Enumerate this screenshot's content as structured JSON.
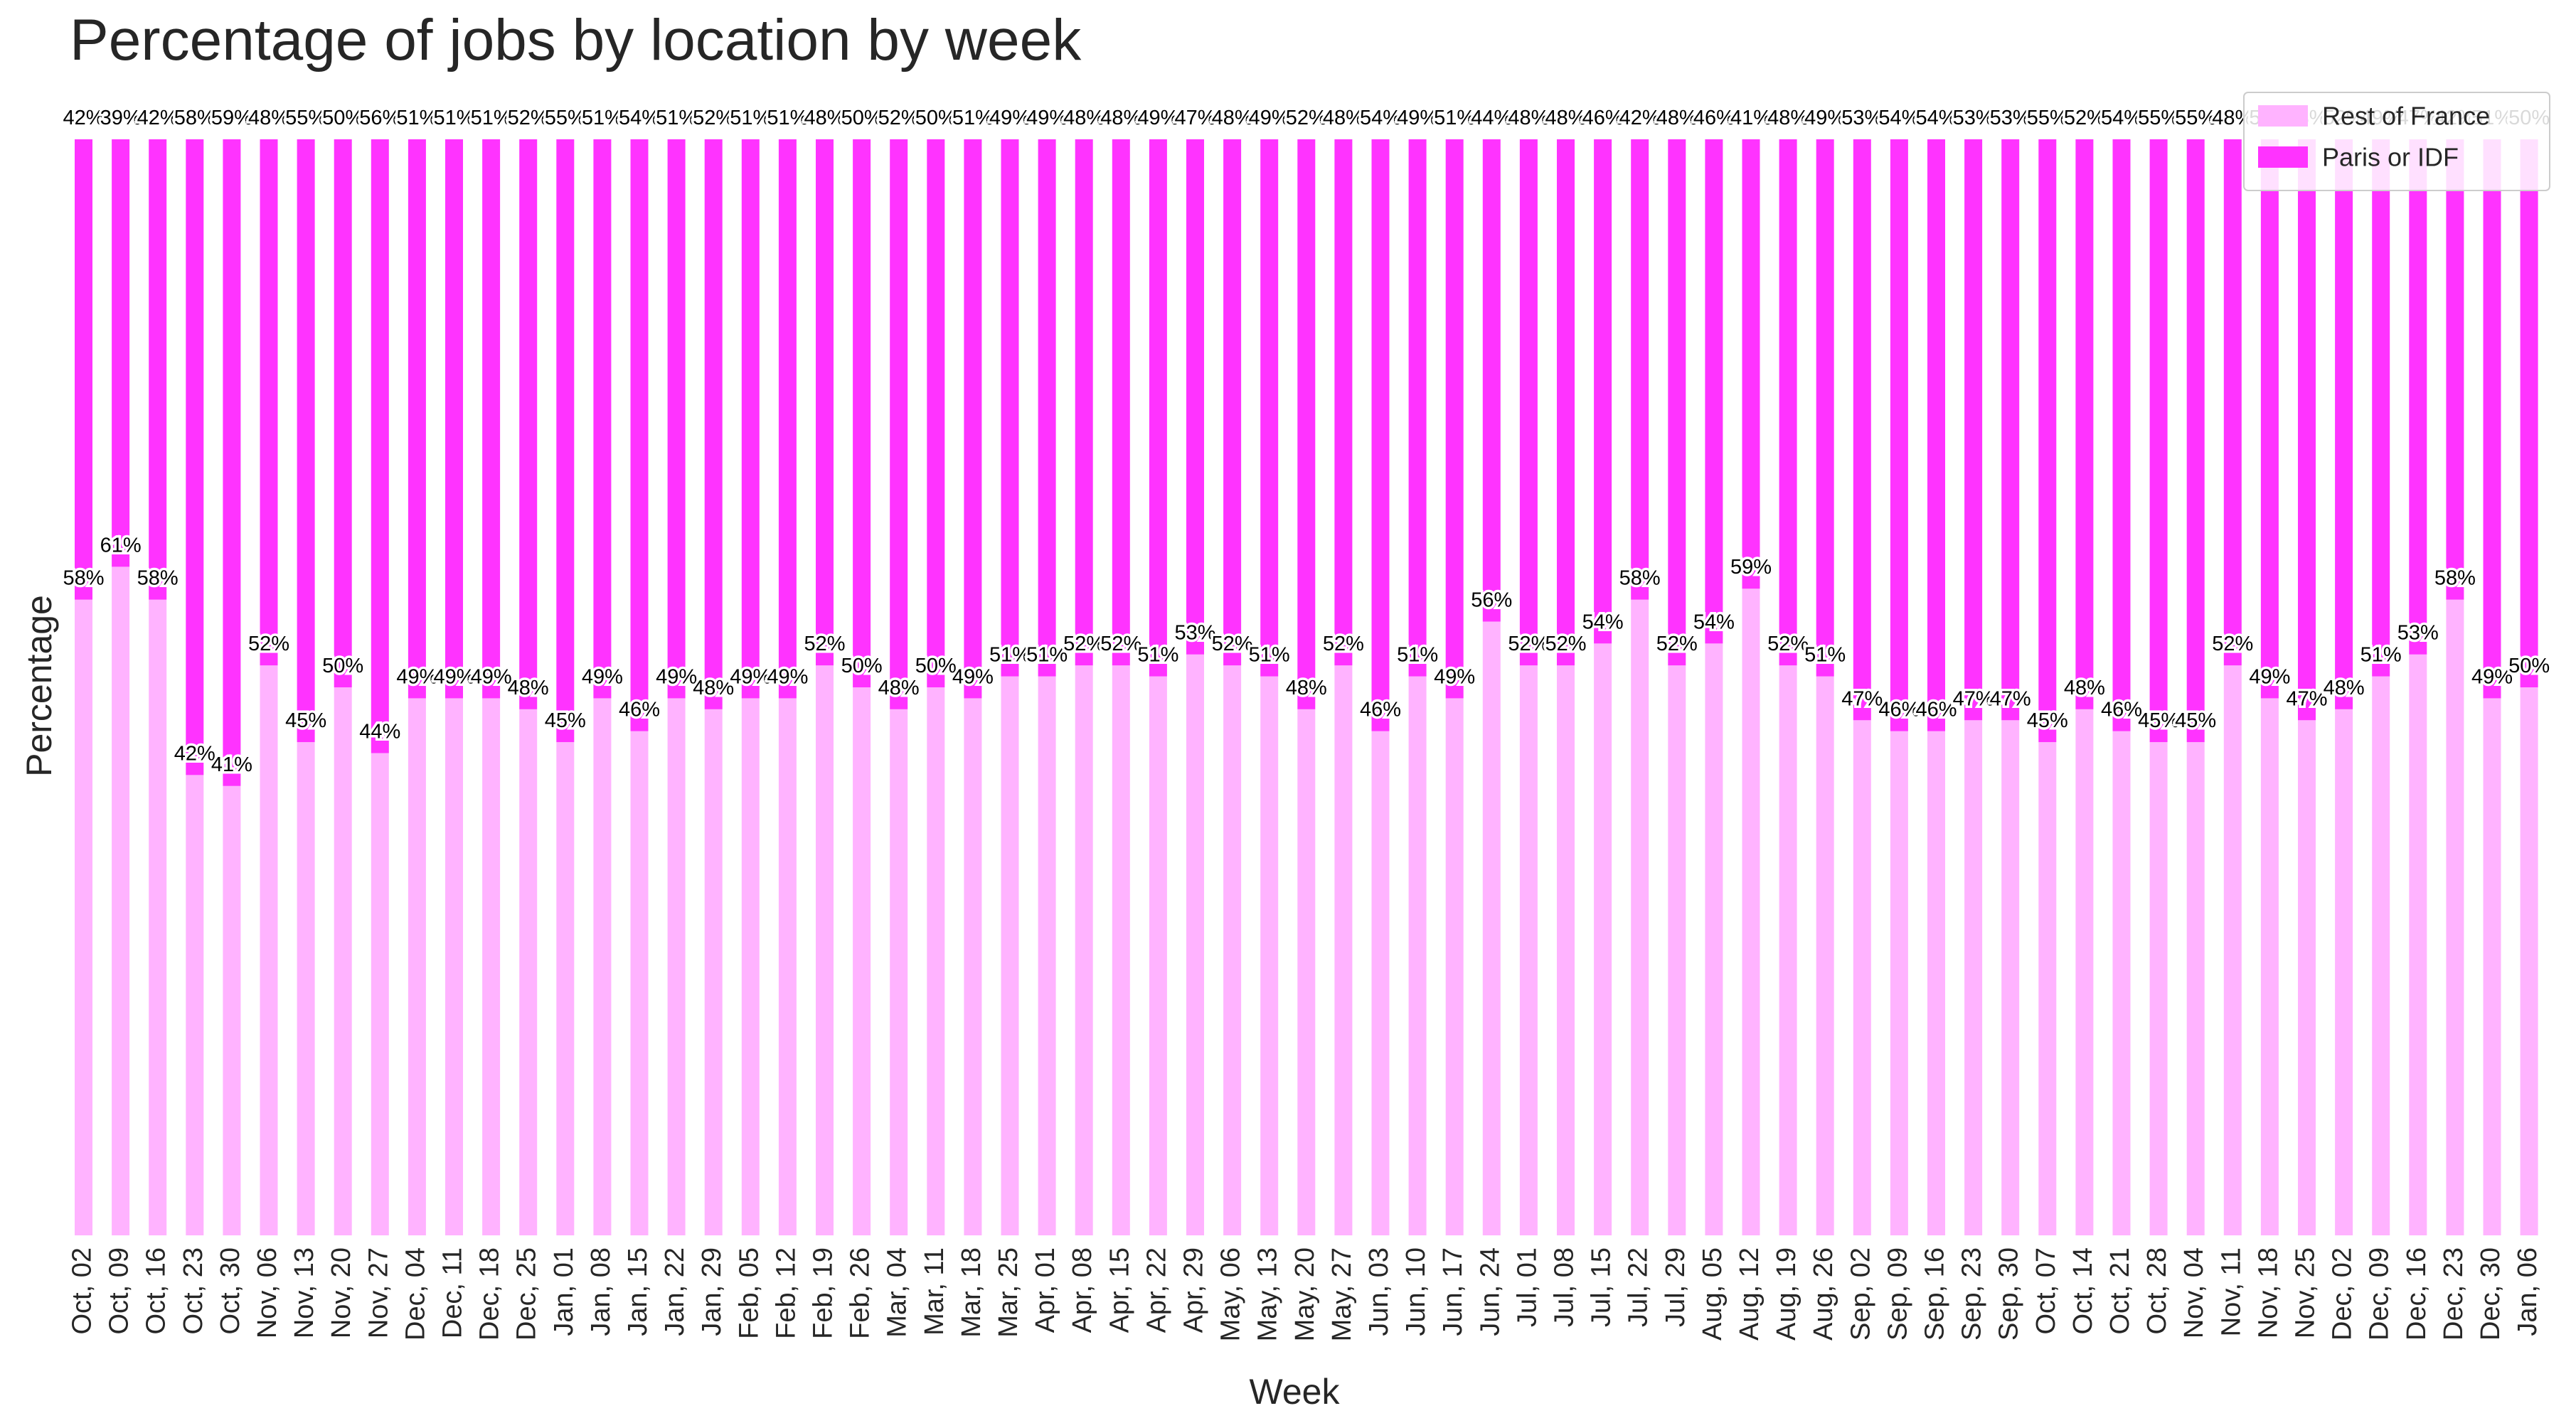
{
  "title": "Percentage of jobs by location by week",
  "chart_data": {
    "type": "bar",
    "stacked": true,
    "title": "Percentage of jobs by location by week",
    "xlabel": "Week",
    "ylabel": "Percentage",
    "ylim": [
      0,
      100
    ],
    "grid": false,
    "legend_position": "top-right",
    "categories": [
      "Oct, 02",
      "Oct, 09",
      "Oct, 16",
      "Oct, 23",
      "Oct, 30",
      "Nov, 06",
      "Nov, 13",
      "Nov, 20",
      "Nov, 27",
      "Dec, 04",
      "Dec, 11",
      "Dec, 18",
      "Dec, 25",
      "Jan, 01",
      "Jan, 08",
      "Jan, 15",
      "Jan, 22",
      "Jan, 29",
      "Feb, 05",
      "Feb, 12",
      "Feb, 19",
      "Feb, 26",
      "Mar, 04",
      "Mar, 11",
      "Mar, 18",
      "Mar, 25",
      "Apr, 01",
      "Apr, 08",
      "Apr, 15",
      "Apr, 22",
      "Apr, 29",
      "May, 06",
      "May, 13",
      "May, 20",
      "May, 27",
      "Jun, 03",
      "Jun, 10",
      "Jun, 17",
      "Jun, 24",
      "Jul, 01",
      "Jul, 08",
      "Jul, 15",
      "Jul, 22",
      "Jul, 29",
      "Aug, 05",
      "Aug, 12",
      "Aug, 19",
      "Aug, 26",
      "Sep, 02",
      "Sep, 09",
      "Sep, 16",
      "Sep, 23",
      "Sep, 30",
      "Oct, 07",
      "Oct, 14",
      "Oct, 21",
      "Oct, 28",
      "Nov, 04",
      "Nov, 11",
      "Nov, 18",
      "Nov, 25",
      "Dec, 02",
      "Dec, 09",
      "Dec, 16",
      "Dec, 23",
      "Dec, 30",
      "Jan, 06"
    ],
    "series": [
      {
        "name": "Rest of France",
        "color": "#ffb3ff",
        "values": [
          58,
          61,
          58,
          42,
          41,
          52,
          45,
          50,
          44,
          49,
          49,
          49,
          48,
          45,
          49,
          46,
          49,
          48,
          49,
          49,
          52,
          50,
          48,
          50,
          49,
          51,
          51,
          52,
          52,
          51,
          53,
          52,
          51,
          48,
          52,
          46,
          51,
          49,
          56,
          52,
          52,
          54,
          58,
          52,
          54,
          59,
          52,
          51,
          47,
          46,
          46,
          47,
          47,
          45,
          48,
          46,
          45,
          45,
          52,
          49,
          47,
          48,
          51,
          53,
          58,
          49,
          50
        ]
      },
      {
        "name": "Paris or IDF",
        "color": "#ff33ff",
        "values": [
          42,
          39,
          42,
          58,
          59,
          48,
          55,
          50,
          56,
          51,
          51,
          51,
          52,
          55,
          51,
          54,
          51,
          52,
          51,
          51,
          48,
          50,
          52,
          50,
          51,
          49,
          49,
          48,
          48,
          49,
          47,
          48,
          49,
          52,
          48,
          54,
          49,
          51,
          44,
          48,
          48,
          46,
          42,
          48,
          46,
          41,
          48,
          49,
          53,
          54,
          54,
          53,
          53,
          55,
          52,
          54,
          55,
          55,
          48,
          51,
          53,
          52,
          49,
          47,
          42,
          51,
          50
        ]
      }
    ]
  }
}
